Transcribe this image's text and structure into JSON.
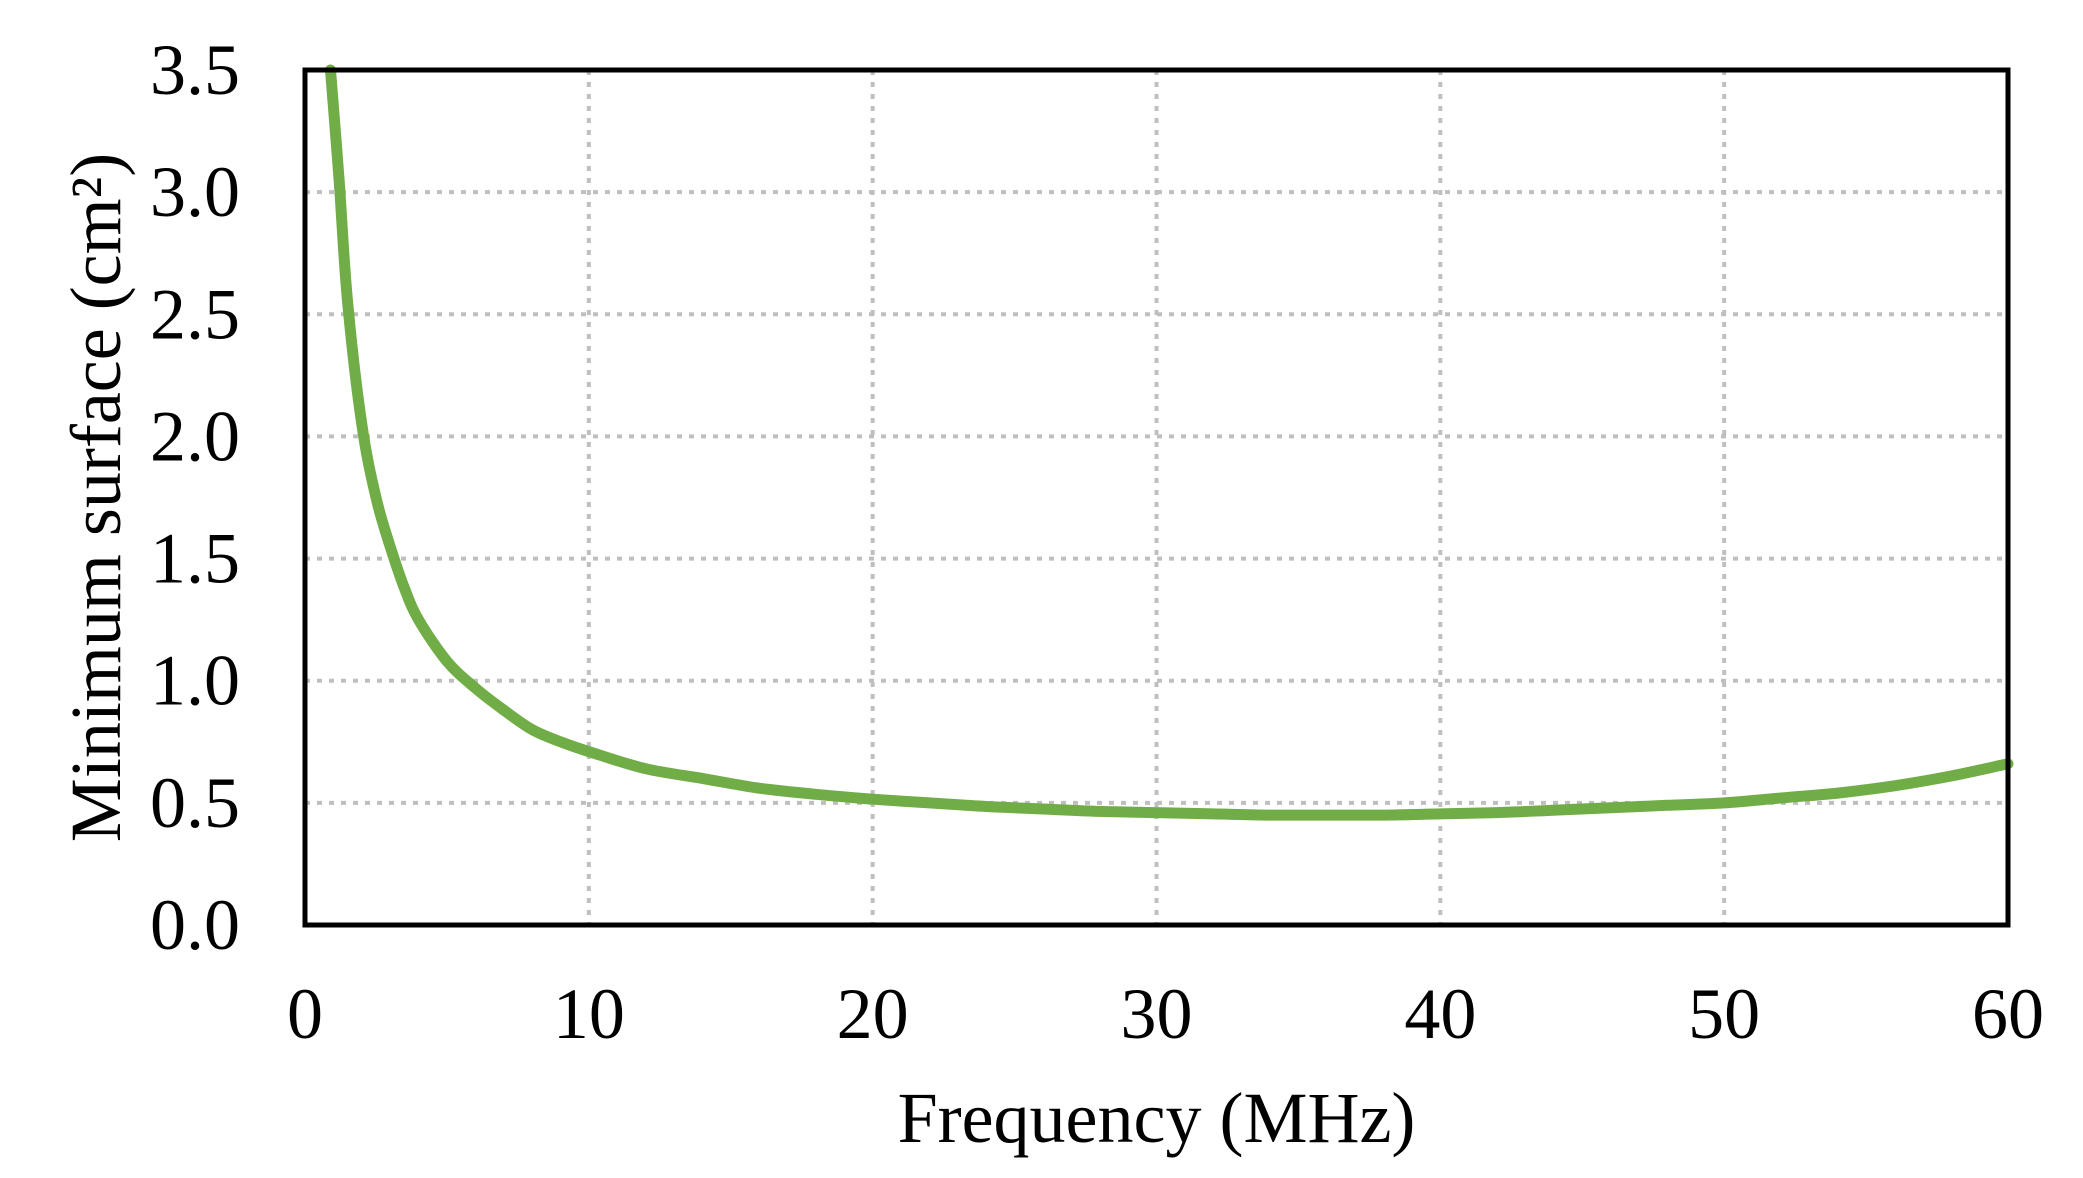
{
  "chart_data": {
    "type": "line",
    "title": "",
    "xlabel": "Frequency (MHz)",
    "ylabel": "Minimum surface (cm²)",
    "xlim": [
      0,
      60
    ],
    "ylim": [
      0,
      3.5
    ],
    "x_ticks": [
      "0",
      "10",
      "20",
      "30",
      "40",
      "50",
      "60"
    ],
    "y_ticks": [
      "0.0",
      "0.5",
      "1.0",
      "1.5",
      "2.0",
      "2.5",
      "3.0",
      "3.5"
    ],
    "grid": true,
    "legend": "none",
    "series": [
      {
        "color": "#70ad47",
        "x": [
          0.9,
          1.2,
          1.5,
          2,
          2.5,
          3,
          3.5,
          4,
          5,
          6,
          7,
          8,
          9,
          10,
          12,
          14,
          16,
          18,
          20,
          22,
          24,
          26,
          28,
          30,
          32,
          34,
          36,
          38,
          40,
          42,
          44,
          46,
          48,
          50,
          52,
          54,
          56,
          58,
          60
        ],
        "y": [
          3.5,
          3.05,
          2.55,
          2.05,
          1.75,
          1.55,
          1.38,
          1.25,
          1.08,
          0.97,
          0.88,
          0.8,
          0.75,
          0.71,
          0.64,
          0.6,
          0.56,
          0.535,
          0.515,
          0.5,
          0.485,
          0.475,
          0.465,
          0.46,
          0.455,
          0.45,
          0.45,
          0.45,
          0.455,
          0.46,
          0.47,
          0.48,
          0.49,
          0.5,
          0.52,
          0.54,
          0.57,
          0.61,
          0.66
        ]
      }
    ]
  }
}
